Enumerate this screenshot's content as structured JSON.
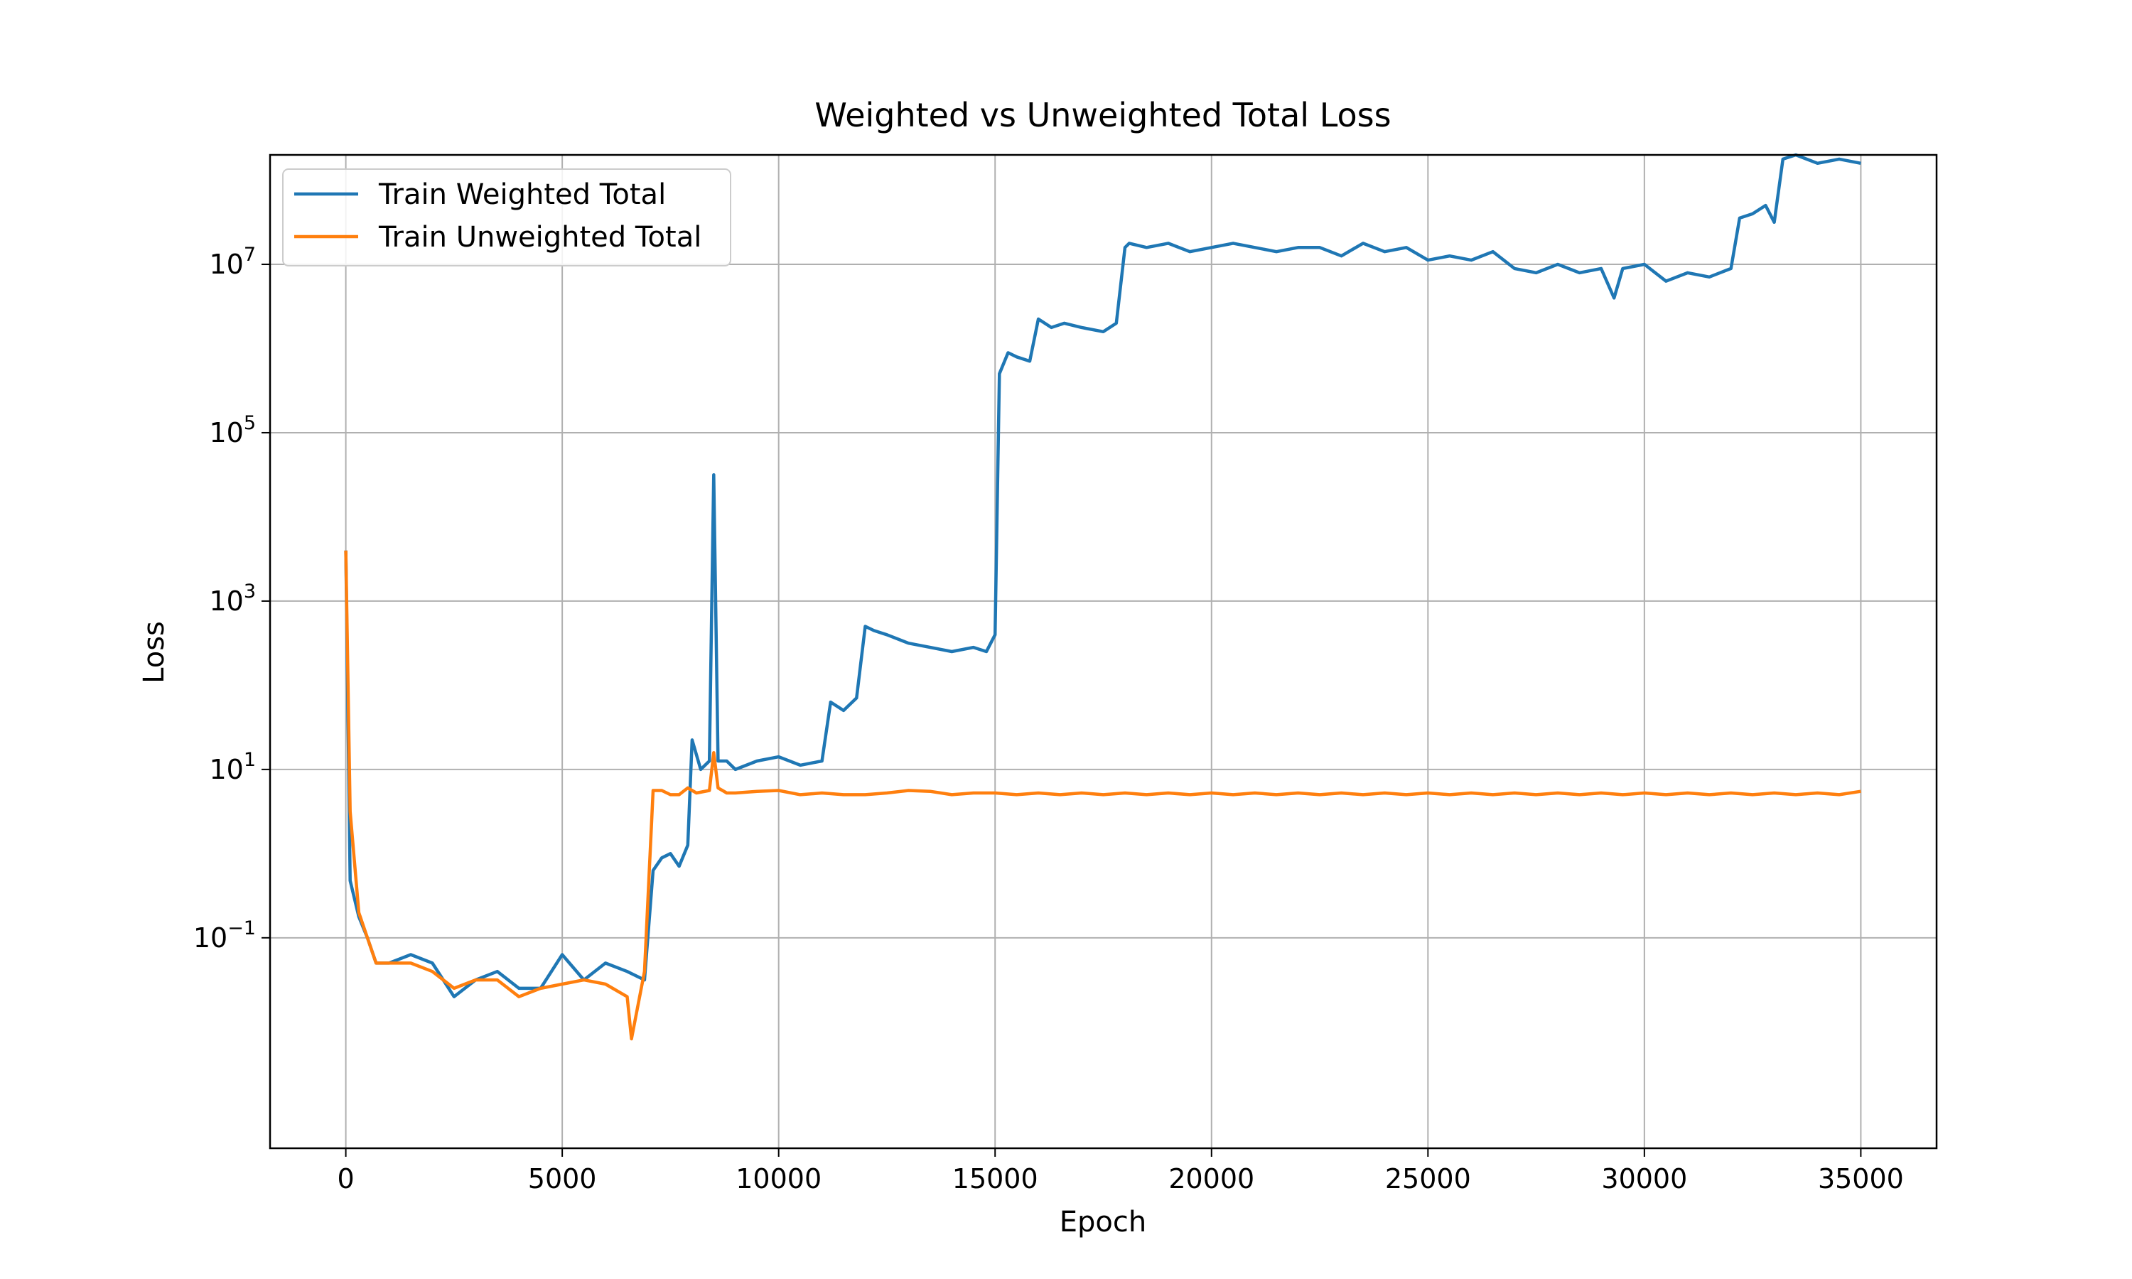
{
  "chart_data": {
    "type": "line",
    "title": "Weighted vs Unweighted Total Loss",
    "xlabel": "Epoch",
    "ylabel": "Loss",
    "x_scale": "linear",
    "y_scale": "log",
    "xlim": [
      -1750,
      36750
    ],
    "ylim_log10": [
      -3.5,
      8.3
    ],
    "x_ticks": [
      0,
      5000,
      10000,
      15000,
      20000,
      25000,
      30000,
      35000
    ],
    "x_tick_labels": [
      "0",
      "5000",
      "10000",
      "15000",
      "20000",
      "25000",
      "30000",
      "35000"
    ],
    "y_ticks_log10": [
      -1,
      1,
      3,
      5,
      7
    ],
    "y_tick_bases": [
      "10",
      "10",
      "10",
      "10",
      "10"
    ],
    "y_tick_exponents": [
      "−1",
      "1",
      "3",
      "5",
      "7"
    ],
    "grid": true,
    "legend_position": "top-left",
    "series": [
      {
        "name": "Train Weighted Total",
        "color": "#1f77b4",
        "x": [
          0,
          100,
          300,
          500,
          700,
          1000,
          1500,
          2000,
          2500,
          3000,
          3500,
          4000,
          4500,
          5000,
          5500,
          6000,
          6500,
          6900,
          7100,
          7300,
          7500,
          7700,
          7900,
          8000,
          8200,
          8400,
          8500,
          8600,
          8800,
          9000,
          9500,
          10000,
          10500,
          11000,
          11200,
          11500,
          11800,
          12000,
          12200,
          12500,
          13000,
          13500,
          14000,
          14500,
          14800,
          15000,
          15100,
          15300,
          15500,
          15800,
          16000,
          16300,
          16600,
          17000,
          17500,
          17800,
          18000,
          18100,
          18500,
          19000,
          19500,
          20000,
          20500,
          21000,
          21500,
          22000,
          22500,
          23000,
          23500,
          24000,
          24500,
          25000,
          25500,
          26000,
          26500,
          27000,
          27500,
          28000,
          28500,
          29000,
          29300,
          29500,
          30000,
          30500,
          31000,
          31500,
          32000,
          32200,
          32500,
          32800,
          33000,
          33200,
          33500,
          34000,
          34500,
          35000
        ],
        "y_log10": [
          3.6,
          -0.32,
          -0.75,
          -1.0,
          -1.3,
          -1.3,
          -1.2,
          -1.3,
          -1.7,
          -1.5,
          -1.4,
          -1.6,
          -1.6,
          -1.2,
          -1.5,
          -1.3,
          -1.4,
          -1.5,
          -0.2,
          -0.05,
          0,
          -0.15,
          0.1,
          1.35,
          1.0,
          1.1,
          4.5,
          1.1,
          1.1,
          1.0,
          1.1,
          1.15,
          1.05,
          1.1,
          1.8,
          1.7,
          1.85,
          2.7,
          2.65,
          2.6,
          2.5,
          2.45,
          2.4,
          2.45,
          2.4,
          2.6,
          5.7,
          5.95,
          5.9,
          5.85,
          6.35,
          6.25,
          6.3,
          6.25,
          6.2,
          6.3,
          7.2,
          7.25,
          7.2,
          7.25,
          7.15,
          7.2,
          7.25,
          7.2,
          7.15,
          7.2,
          7.2,
          7.1,
          7.25,
          7.15,
          7.2,
          7.05,
          7.1,
          7.05,
          7.15,
          6.95,
          6.9,
          7.0,
          6.9,
          6.95,
          6.6,
          6.95,
          7.0,
          6.8,
          6.9,
          6.85,
          6.95,
          7.55,
          7.6,
          7.7,
          7.5,
          8.25,
          8.3,
          8.2,
          8.25,
          8.2
        ]
      },
      {
        "name": "Train Unweighted Total",
        "color": "#ff7f0e",
        "x": [
          0,
          100,
          300,
          500,
          700,
          1000,
          1500,
          2000,
          2500,
          3000,
          3500,
          4000,
          4500,
          5000,
          5500,
          6000,
          6500,
          6600,
          6900,
          7100,
          7300,
          7500,
          7700,
          7900,
          8100,
          8400,
          8500,
          8600,
          8800,
          9000,
          9500,
          10000,
          10500,
          11000,
          11500,
          12000,
          12500,
          13000,
          13500,
          14000,
          14500,
          15000,
          15500,
          16000,
          16500,
          17000,
          17500,
          18000,
          18500,
          19000,
          19500,
          20000,
          20500,
          21000,
          21500,
          22000,
          22500,
          23000,
          23500,
          24000,
          24500,
          25000,
          25500,
          26000,
          26500,
          27000,
          27500,
          28000,
          28500,
          29000,
          29500,
          30000,
          30500,
          31000,
          31500,
          32000,
          32500,
          33000,
          33500,
          34000,
          34500,
          35000
        ],
        "y_log10": [
          3.6,
          0.5,
          -0.7,
          -1.0,
          -1.3,
          -1.3,
          -1.3,
          -1.4,
          -1.6,
          -1.5,
          -1.5,
          -1.7,
          -1.6,
          -1.55,
          -1.5,
          -1.55,
          -1.7,
          -2.2,
          -1.4,
          0.75,
          0.75,
          0.7,
          0.7,
          0.78,
          0.72,
          0.75,
          1.2,
          0.78,
          0.72,
          0.72,
          0.74,
          0.75,
          0.7,
          0.72,
          0.7,
          0.7,
          0.72,
          0.75,
          0.74,
          0.7,
          0.72,
          0.72,
          0.7,
          0.72,
          0.7,
          0.72,
          0.7,
          0.72,
          0.7,
          0.72,
          0.7,
          0.72,
          0.7,
          0.72,
          0.7,
          0.72,
          0.7,
          0.72,
          0.7,
          0.72,
          0.7,
          0.72,
          0.7,
          0.72,
          0.7,
          0.72,
          0.7,
          0.72,
          0.7,
          0.72,
          0.7,
          0.72,
          0.7,
          0.72,
          0.7,
          0.72,
          0.7,
          0.72,
          0.7,
          0.72,
          0.7,
          0.74
        ]
      }
    ]
  }
}
